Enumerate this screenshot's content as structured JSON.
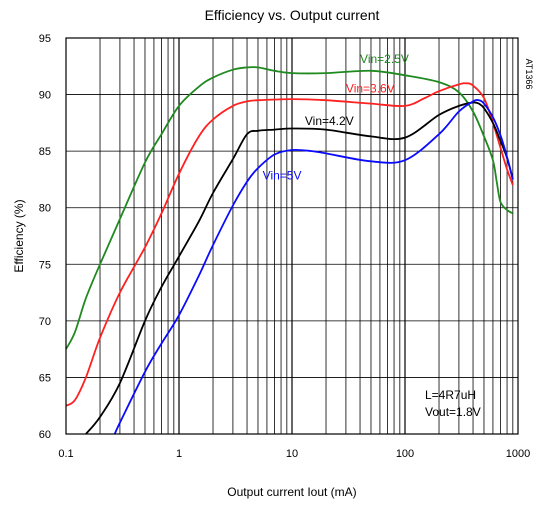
{
  "chart_data": {
    "type": "line",
    "title": "Efficiency vs. Output current",
    "xlabel": "Output current Iout  (mA)",
    "ylabel": "Efficiency  (%)",
    "x_scale": "log",
    "xlim": [
      0.1,
      1000
    ],
    "ylim": [
      60,
      95
    ],
    "x_tick_labels": [
      "0.1",
      "1",
      "10",
      "100",
      "1000"
    ],
    "y_tick_labels": [
      "60",
      "65",
      "70",
      "75",
      "80",
      "85",
      "90",
      "95"
    ],
    "grid": true,
    "annotation_lines": [
      "L=4R7uH",
      "Vout=1.8V"
    ],
    "side_label": "AT1366",
    "series": [
      {
        "name": "Vin=2.5V",
        "color": "#1f8a1f",
        "x": [
          0.1,
          0.12,
          0.15,
          0.2,
          0.3,
          0.5,
          0.7,
          1,
          1.5,
          2,
          3,
          4,
          5,
          7,
          10,
          20,
          50,
          100,
          200,
          300,
          400,
          500,
          600,
          650,
          700,
          800,
          900
        ],
        "y": [
          67.5,
          69,
          72,
          75,
          79,
          84,
          86.5,
          89,
          90.7,
          91.5,
          92.2,
          92.4,
          92.4,
          92.1,
          91.9,
          91.9,
          92.1,
          91.7,
          91.1,
          90.2,
          88.5,
          86.3,
          84.2,
          82.2,
          80.5,
          79.8,
          79.5
        ]
      },
      {
        "name": "Vin=3.6V",
        "color": "#ff2020",
        "x": [
          0.1,
          0.12,
          0.15,
          0.2,
          0.3,
          0.5,
          0.7,
          1,
          1.5,
          2,
          3,
          4,
          5,
          10,
          20,
          50,
          100,
          150,
          200,
          300,
          350,
          400,
          500,
          600,
          700,
          800,
          900
        ],
        "y": [
          62.5,
          63,
          65,
          68.5,
          72.5,
          76.5,
          79.5,
          83,
          86.3,
          87.8,
          89,
          89.4,
          89.5,
          89.6,
          89.5,
          89.2,
          89,
          89.7,
          90.3,
          90.9,
          91,
          90.8,
          89.7,
          87.5,
          85.3,
          83.4,
          82
        ]
      },
      {
        "name": "Vin=4.2V",
        "color": "#000000",
        "x": [
          0.15,
          0.2,
          0.3,
          0.5,
          0.7,
          1,
          1.5,
          2,
          3,
          4,
          5,
          7,
          10,
          20,
          50,
          100,
          200,
          300,
          400,
          450,
          500,
          600,
          700,
          800,
          900
        ],
        "y": [
          60,
          61.5,
          64.5,
          70,
          73,
          75.7,
          78.8,
          81.3,
          84.3,
          86.5,
          86.8,
          86.9,
          87,
          86.9,
          86.3,
          86.2,
          88.2,
          89,
          89.3,
          89.2,
          88.8,
          87.5,
          85.9,
          84.4,
          82.5
        ]
      },
      {
        "name": "Vin=5V",
        "color": "#0a0aff",
        "x": [
          0.27,
          0.3,
          0.5,
          0.7,
          1,
          1.5,
          2,
          3,
          4,
          5,
          7,
          10,
          15,
          20,
          50,
          100,
          200,
          300,
          400,
          450,
          500,
          600,
          700,
          800,
          900
        ],
        "y": [
          60,
          61,
          65.5,
          68,
          70.5,
          74,
          76.7,
          80.2,
          82.3,
          83.5,
          84.7,
          85.1,
          85,
          84.8,
          84.1,
          84.2,
          86.5,
          88.5,
          89.4,
          89.5,
          89.2,
          88,
          86.4,
          84.5,
          82.5
        ]
      }
    ]
  }
}
